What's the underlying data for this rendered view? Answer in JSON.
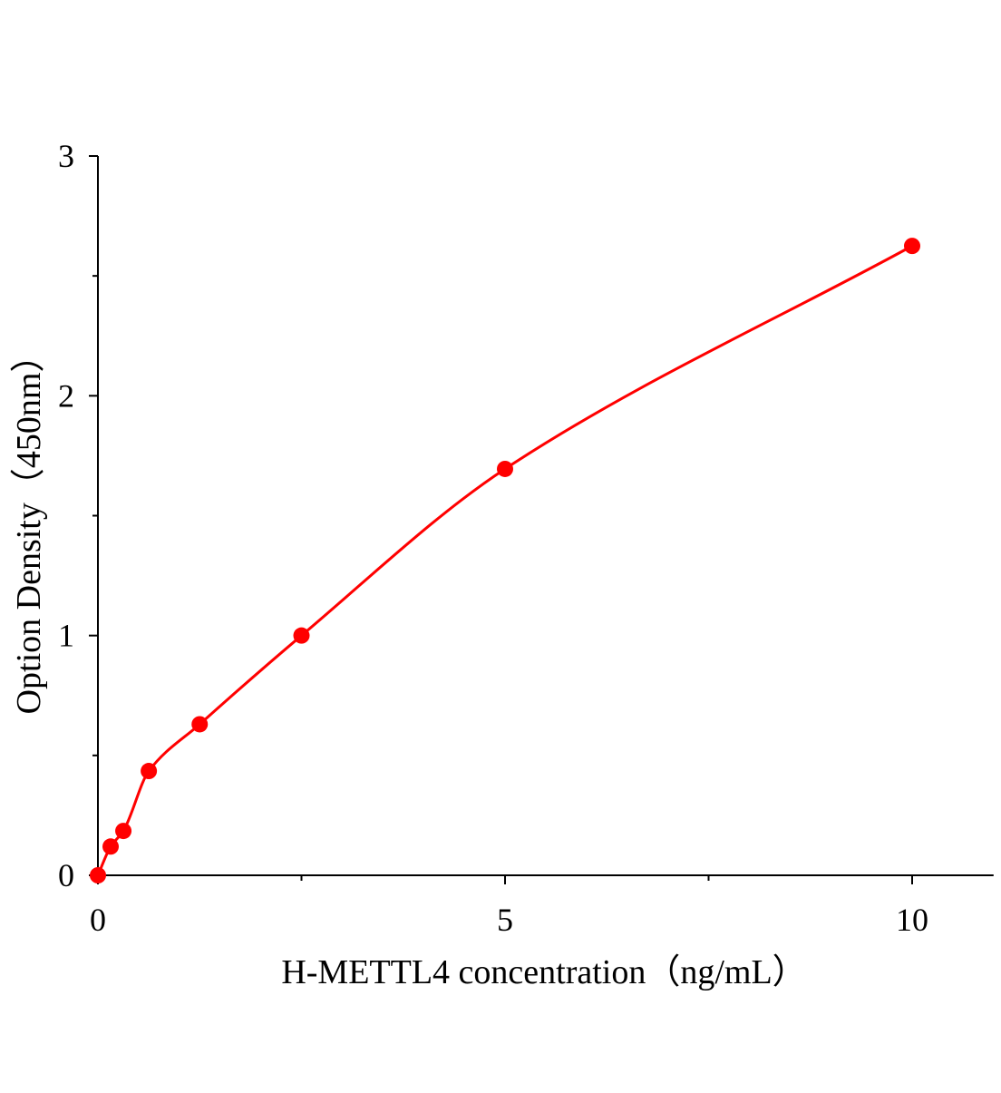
{
  "chart_data": {
    "type": "scatter",
    "title": "",
    "xlabel": "H-METTL4 concentration（ng/mL）",
    "ylabel": "Option Density（450nm）",
    "xlim": [
      0,
      11
    ],
    "ylim": [
      0,
      3
    ],
    "x_ticks": [
      "0",
      "5",
      "10"
    ],
    "y_ticks": [
      "0",
      "1",
      "2",
      "3"
    ],
    "grid": false,
    "legend": "none",
    "colors": {
      "series": "#ff0000",
      "axis": "#000000"
    },
    "series": [
      {
        "x": [
          0,
          0.156,
          0.3125,
          0.625,
          1.25,
          2.5,
          5,
          10
        ],
        "y": [
          0,
          0.12,
          0.185,
          0.435,
          0.63,
          1.0,
          1.695,
          2.625
        ],
        "fit_curve": true
      }
    ]
  }
}
